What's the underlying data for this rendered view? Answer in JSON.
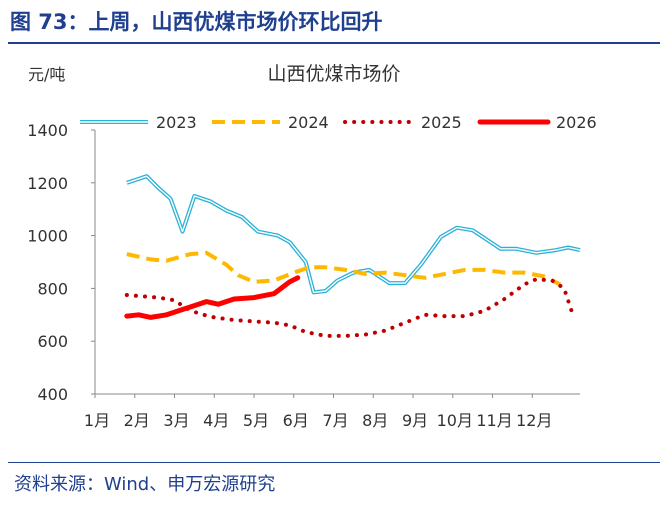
{
  "figure": {
    "title": "图 73：上周，山西优煤市场价环比回升",
    "source": "资料来源：Wind、申万宏源研究"
  },
  "chart_data": {
    "type": "line",
    "title": "山西优煤市场价",
    "ylabel": "元/吨",
    "xlabel": "",
    "ylim": [
      400,
      1400
    ],
    "yticks": [
      400,
      600,
      800,
      1000,
      1200,
      1400
    ],
    "xlim": [
      1,
      13.2
    ],
    "xticks": [
      {
        "label": "1月",
        "x": 1
      },
      {
        "label": "2月",
        "x": 2
      },
      {
        "label": "3月",
        "x": 3
      },
      {
        "label": "4月",
        "x": 4
      },
      {
        "label": "5月",
        "x": 5
      },
      {
        "label": "6月",
        "x": 6
      },
      {
        "label": "7月",
        "x": 7
      },
      {
        "label": "8月",
        "x": 8
      },
      {
        "label": "9月",
        "x": 9
      },
      {
        "label": "10月",
        "x": 10
      },
      {
        "label": "11月",
        "x": 11
      },
      {
        "label": "12月",
        "x": 12
      }
    ],
    "grid": false,
    "legend_position": "top",
    "series": [
      {
        "name": "2023",
        "color": "#2ab2d6",
        "style": "double",
        "x": [
          1.8,
          2.3,
          2.6,
          2.9,
          3.2,
          3.5,
          3.9,
          4.3,
          4.7,
          5.1,
          5.6,
          5.9,
          6.3,
          6.5,
          6.8,
          7.1,
          7.5,
          7.9,
          8.4,
          8.8,
          9.2,
          9.7,
          10.1,
          10.5,
          10.8,
          11.2,
          11.6,
          12.1,
          12.6,
          12.9,
          13.2
        ],
        "values": [
          1200,
          1225,
          1180,
          1140,
          1015,
          1150,
          1130,
          1095,
          1070,
          1015,
          1000,
          975,
          900,
          785,
          790,
          830,
          860,
          870,
          820,
          820,
          890,
          995,
          1030,
          1020,
          990,
          950,
          950,
          935,
          945,
          955,
          945
        ]
      },
      {
        "name": "2024",
        "color": "#ffb800",
        "style": "dashed",
        "x": [
          1.8,
          2.1,
          2.4,
          2.8,
          3.4,
          3.8,
          4.3,
          4.6,
          5.0,
          5.5,
          6.0,
          6.4,
          6.8,
          7.3,
          7.8,
          8.3,
          8.8,
          9.3,
          9.8,
          10.3,
          10.8,
          11.3,
          11.8,
          12.3,
          12.7
        ],
        "values": [
          930,
          920,
          910,
          905,
          930,
          935,
          890,
          850,
          825,
          830,
          860,
          880,
          880,
          870,
          855,
          860,
          850,
          840,
          855,
          870,
          870,
          860,
          860,
          845,
          815
        ]
      },
      {
        "name": "2025",
        "color": "#c00000",
        "style": "dotted",
        "x": [
          1.8,
          2.2,
          2.6,
          3.0,
          3.3,
          3.6,
          4.0,
          4.5,
          5.0,
          5.5,
          5.9,
          6.3,
          6.8,
          7.3,
          7.8,
          8.3,
          8.8,
          9.3,
          9.8,
          10.3,
          10.8,
          11.3,
          11.8,
          12.1,
          12.5,
          12.8,
          13.0
        ],
        "values": [
          775,
          770,
          765,
          755,
          725,
          705,
          690,
          680,
          675,
          670,
          660,
          635,
          620,
          620,
          625,
          640,
          670,
          700,
          695,
          695,
          715,
          760,
          815,
          835,
          830,
          800,
          710
        ]
      },
      {
        "name": "2026",
        "color": "#ff0000",
        "style": "solid",
        "x": [
          1.8,
          2.1,
          2.4,
          2.8,
          3.2,
          3.5,
          3.8,
          4.1,
          4.5,
          5.0,
          5.5,
          5.9,
          6.1
        ],
        "values": [
          695,
          700,
          690,
          700,
          720,
          735,
          750,
          740,
          760,
          765,
          780,
          825,
          840
        ]
      }
    ]
  }
}
